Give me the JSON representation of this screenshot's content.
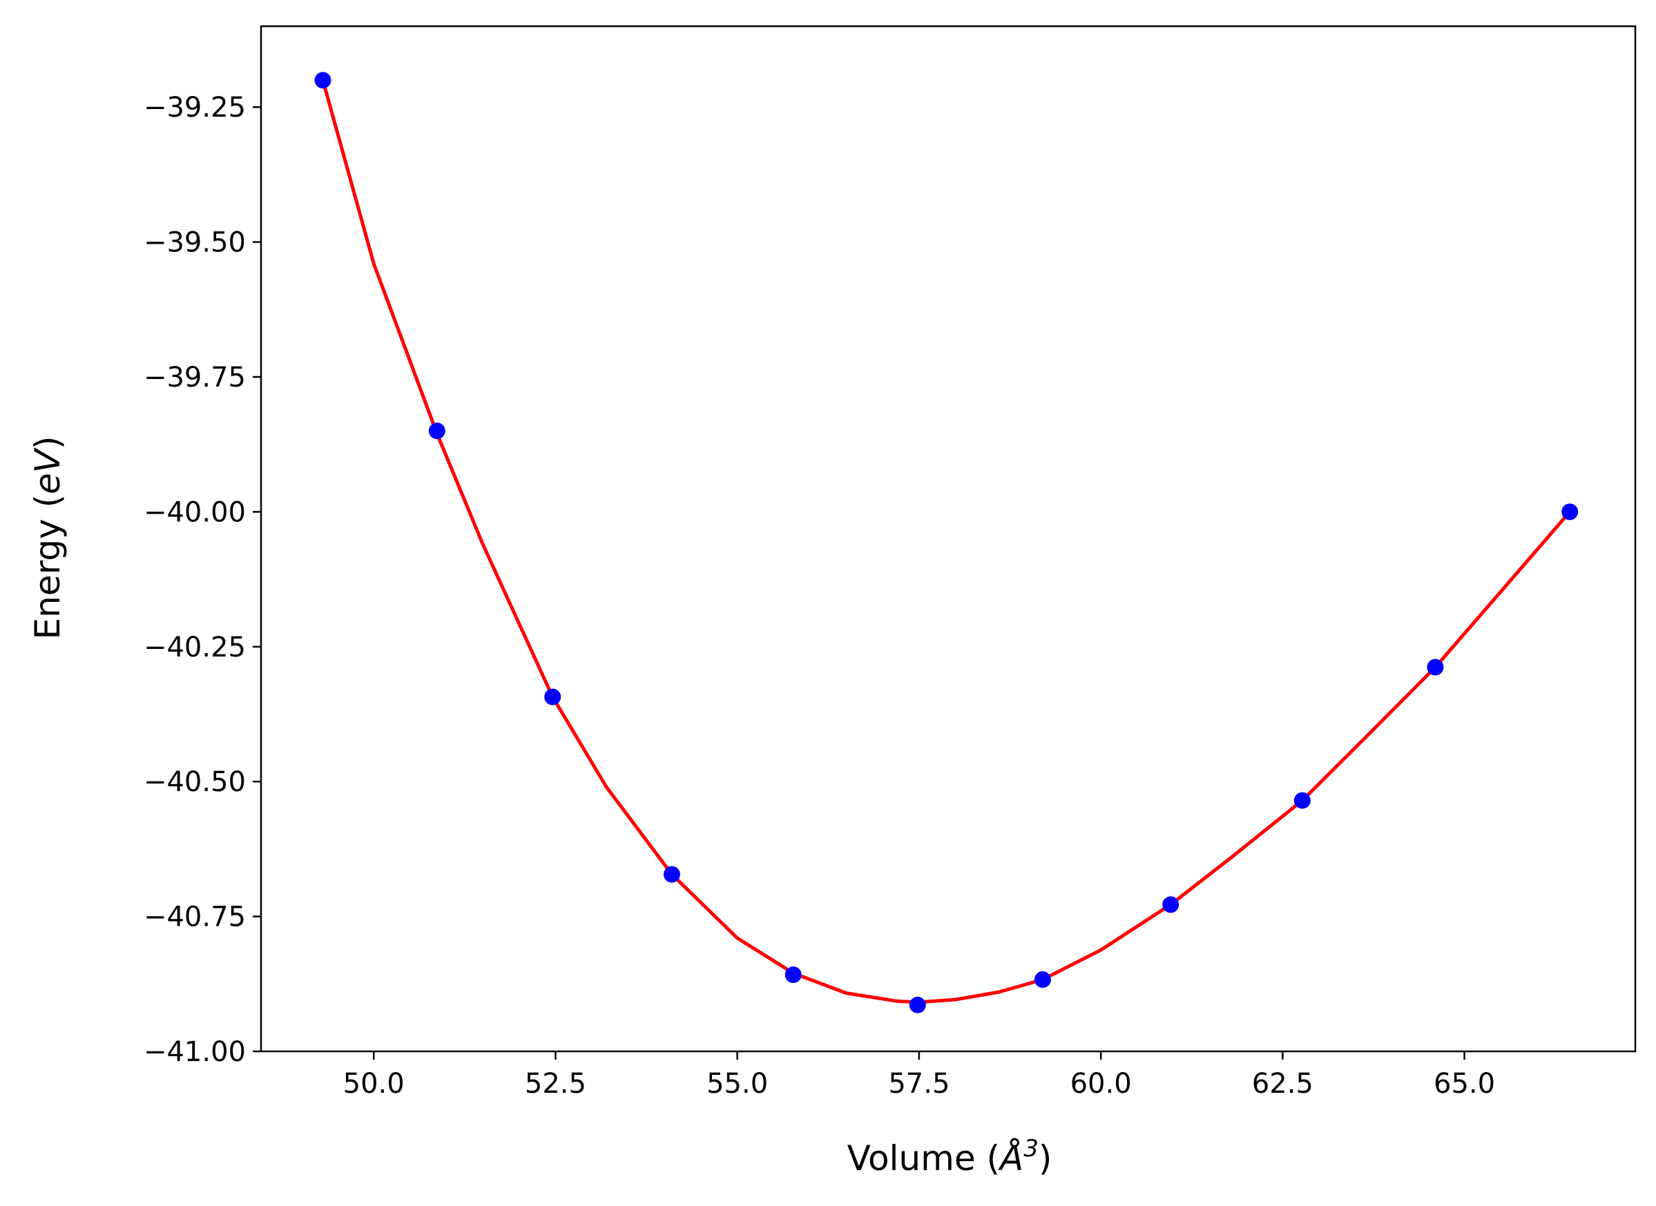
{
  "chart_data": {
    "type": "line",
    "title": "",
    "xlabel": "Volume (Å³)",
    "ylabel": "Energy (eV)",
    "xlabel_parts": {
      "prefix": "Volume (",
      "symbol": "Å",
      "sup": "3",
      "suffix": ")"
    },
    "ylabel_parts": {
      "prefix": "Energy (",
      "unit": "eV",
      "suffix": ")"
    },
    "xlim": [
      48.45,
      67.35
    ],
    "ylim": [
      -41.0,
      -39.1
    ],
    "x_ticks": [
      50.0,
      52.5,
      55.0,
      57.5,
      60.0,
      62.5,
      65.0
    ],
    "x_tick_labels": [
      "50.0",
      "52.5",
      "55.0",
      "57.5",
      "60.0",
      "62.5",
      "65.0"
    ],
    "y_ticks": [
      -41.0,
      -40.75,
      -40.5,
      -40.25,
      -40.0,
      -39.75,
      -39.5,
      -39.25
    ],
    "y_tick_labels": [
      "−41.00",
      "−40.75",
      "−40.50",
      "−40.25",
      "−40.00",
      "−39.75",
      "−39.50",
      "−39.25"
    ],
    "grid": false,
    "legend": "none",
    "points": {
      "color": "#0000ff",
      "x": [
        49.3,
        50.87,
        52.46,
        54.1,
        55.77,
        57.48,
        59.2,
        60.96,
        62.77,
        64.6,
        66.45
      ],
      "y": [
        -39.2,
        -39.85,
        -40.343,
        -40.672,
        -40.858,
        -40.914,
        -40.867,
        -40.728,
        -40.535,
        -40.288,
        -40.0
      ]
    },
    "fit_curve": {
      "color": "#ff0000",
      "x": [
        49.3,
        50.0,
        50.87,
        51.5,
        52.46,
        53.2,
        54.1,
        55.0,
        55.77,
        56.5,
        57.2,
        57.48,
        58.0,
        58.6,
        59.2,
        60.0,
        60.96,
        61.8,
        62.77,
        63.7,
        64.6,
        65.5,
        66.45
      ],
      "y": [
        -39.2,
        -39.54,
        -39.855,
        -40.06,
        -40.343,
        -40.51,
        -40.672,
        -40.79,
        -40.855,
        -40.892,
        -40.907,
        -40.909,
        -40.904,
        -40.89,
        -40.867,
        -40.812,
        -40.728,
        -40.64,
        -40.535,
        -40.41,
        -40.288,
        -40.148,
        -40.0
      ]
    }
  }
}
